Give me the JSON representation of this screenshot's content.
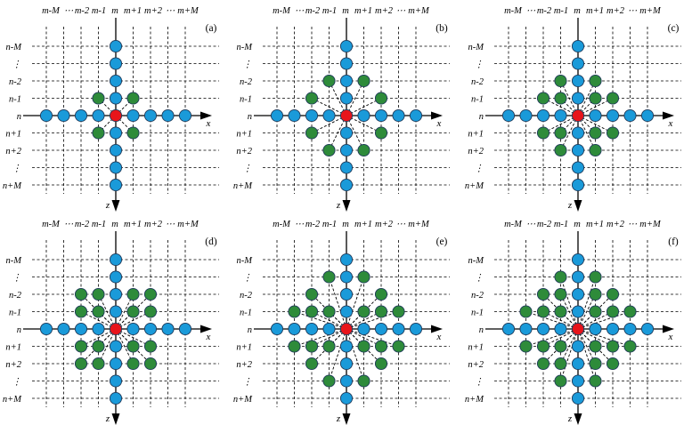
{
  "figure": {
    "column_labels": [
      "m-M",
      "⋯",
      "m-2",
      "m-1",
      "m",
      "m+1",
      "m+2",
      "⋯",
      "m+M"
    ],
    "row_labels": [
      "n-M",
      "⋮",
      "n-2",
      "n-1",
      "n",
      "n+1",
      "n+2",
      "⋮",
      "n+M"
    ],
    "x_axis_label": "x",
    "z_axis_label": "z",
    "colors": {
      "grid": "#000000",
      "axis_node": "#1a9ad9",
      "offaxis_node": "#2e8b3a",
      "center_node": "#e8141a",
      "node_outline": "#1f3a5a",
      "dash_link": "#000000"
    },
    "panels": [
      {
        "label": "(a)",
        "nodes": [
          [
            -1,
            -1
          ],
          [
            1,
            -1
          ],
          [
            -1,
            1
          ],
          [
            1,
            1
          ]
        ]
      },
      {
        "label": "(b)",
        "nodes": [
          [
            -1,
            -2
          ],
          [
            1,
            -2
          ],
          [
            -2,
            -1
          ],
          [
            2,
            -1
          ],
          [
            -2,
            1
          ],
          [
            2,
            1
          ],
          [
            -1,
            2
          ],
          [
            1,
            2
          ]
        ]
      },
      {
        "label": "(c)",
        "nodes": [
          [
            -1,
            -2
          ],
          [
            1,
            -2
          ],
          [
            -2,
            -1
          ],
          [
            -1,
            -1
          ],
          [
            1,
            -1
          ],
          [
            2,
            -1
          ],
          [
            -2,
            1
          ],
          [
            -1,
            1
          ],
          [
            1,
            1
          ],
          [
            2,
            1
          ],
          [
            -1,
            2
          ],
          [
            1,
            2
          ]
        ]
      },
      {
        "label": "(d)",
        "nodes": [
          [
            -2,
            -2
          ],
          [
            -1,
            -2
          ],
          [
            1,
            -2
          ],
          [
            2,
            -2
          ],
          [
            -2,
            -1
          ],
          [
            -1,
            -1
          ],
          [
            1,
            -1
          ],
          [
            2,
            -1
          ],
          [
            -2,
            1
          ],
          [
            -1,
            1
          ],
          [
            1,
            1
          ],
          [
            2,
            1
          ],
          [
            -2,
            2
          ],
          [
            -1,
            2
          ],
          [
            1,
            2
          ],
          [
            2,
            2
          ]
        ]
      },
      {
        "label": "(e)",
        "nodes": [
          [
            -1,
            -3
          ],
          [
            1,
            -3
          ],
          [
            -2,
            -2
          ],
          [
            2,
            -2
          ],
          [
            -3,
            -1
          ],
          [
            -2,
            -1
          ],
          [
            -1,
            -1
          ],
          [
            1,
            -1
          ],
          [
            2,
            -1
          ],
          [
            3,
            -1
          ],
          [
            -3,
            1
          ],
          [
            -2,
            1
          ],
          [
            -1,
            1
          ],
          [
            1,
            1
          ],
          [
            2,
            1
          ],
          [
            3,
            1
          ],
          [
            -2,
            2
          ],
          [
            2,
            2
          ],
          [
            -1,
            3
          ],
          [
            1,
            3
          ]
        ]
      },
      {
        "label": "(f)",
        "nodes": [
          [
            -1,
            -3
          ],
          [
            1,
            -3
          ],
          [
            -2,
            -2
          ],
          [
            -1,
            -2
          ],
          [
            1,
            -2
          ],
          [
            2,
            -2
          ],
          [
            -3,
            -1
          ],
          [
            -2,
            -1
          ],
          [
            -1,
            -1
          ],
          [
            1,
            -1
          ],
          [
            2,
            -1
          ],
          [
            3,
            -1
          ],
          [
            -3,
            1
          ],
          [
            -2,
            1
          ],
          [
            -1,
            1
          ],
          [
            1,
            1
          ],
          [
            2,
            1
          ],
          [
            3,
            1
          ],
          [
            -2,
            2
          ],
          [
            -1,
            2
          ],
          [
            1,
            2
          ],
          [
            2,
            2
          ],
          [
            -1,
            3
          ],
          [
            1,
            3
          ]
        ]
      }
    ]
  }
}
